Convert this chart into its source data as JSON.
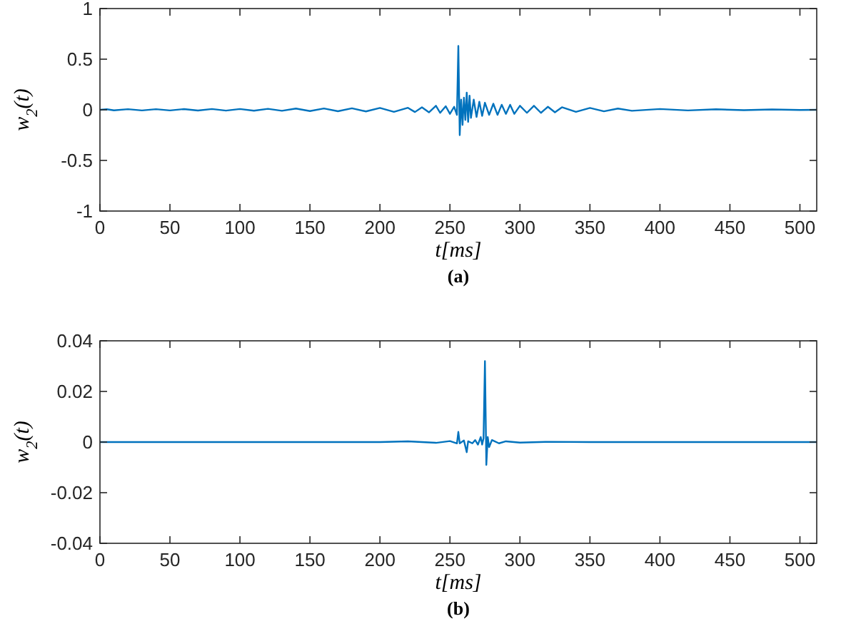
{
  "chart_data": [
    {
      "type": "line",
      "xlabel": "t[ms]",
      "ylabel": "w$_{2}$(t)",
      "annotations": [
        "(a)"
      ],
      "xlim": [
        0,
        512
      ],
      "xticks": [
        0,
        50,
        100,
        150,
        200,
        250,
        300,
        350,
        400,
        450,
        500
      ],
      "ylim": [
        -1,
        1
      ],
      "yticks": [
        -1,
        -0.5,
        0,
        0.5,
        1
      ],
      "grid": false,
      "series": [
        {
          "color": "#0072bd",
          "x": [
            0,
            5,
            10,
            20,
            30,
            40,
            50,
            60,
            70,
            80,
            90,
            100,
            110,
            120,
            130,
            140,
            150,
            160,
            170,
            180,
            190,
            200,
            210,
            220,
            225,
            230,
            235,
            240,
            243,
            247,
            250,
            253,
            255,
            256,
            257,
            258,
            259,
            260,
            261,
            262,
            263,
            264,
            265,
            267,
            269,
            271,
            273,
            275,
            278,
            281,
            284,
            287,
            290,
            293,
            296,
            300,
            305,
            310,
            315,
            320,
            325,
            330,
            340,
            350,
            360,
            370,
            380,
            400,
            420,
            440,
            460,
            480,
            500,
            512
          ],
          "values": [
            0,
            0.005,
            -0.005,
            0.006,
            -0.006,
            0.006,
            -0.006,
            0.007,
            -0.007,
            0.008,
            -0.008,
            0.008,
            -0.009,
            0.01,
            -0.01,
            0.012,
            -0.012,
            0.013,
            -0.014,
            0.015,
            -0.016,
            0.018,
            -0.02,
            0.02,
            -0.022,
            0.025,
            -0.025,
            0.04,
            -0.03,
            0.035,
            -0.04,
            0.03,
            -0.05,
            0.63,
            -0.25,
            0.1,
            -0.15,
            0.12,
            -0.1,
            0.17,
            -0.12,
            0.14,
            -0.08,
            0.1,
            -0.07,
            0.08,
            -0.06,
            0.07,
            -0.05,
            0.06,
            -0.05,
            0.05,
            -0.04,
            0.05,
            -0.04,
            0.04,
            -0.03,
            0.04,
            -0.03,
            0.03,
            -0.025,
            0.025,
            -0.02,
            0.018,
            -0.015,
            0.012,
            -0.01,
            0.008,
            -0.006,
            0.005,
            -0.004,
            0.003,
            -0.002,
            0
          ]
        }
      ]
    },
    {
      "type": "line",
      "xlabel": "t[ms]",
      "ylabel": "w$_{2}$(t)",
      "annotations": [
        "(b)"
      ],
      "xlim": [
        0,
        512
      ],
      "xticks": [
        0,
        50,
        100,
        150,
        200,
        250,
        300,
        350,
        400,
        450,
        500
      ],
      "ylim": [
        -0.04,
        0.04
      ],
      "yticks": [
        -0.04,
        -0.02,
        0,
        0.02,
        0.04
      ],
      "grid": false,
      "series": [
        {
          "color": "#0072bd",
          "x": [
            0,
            200,
            220,
            240,
            250,
            255,
            256,
            257,
            260,
            262,
            263,
            266,
            268,
            270,
            272,
            273,
            274,
            275,
            276,
            277,
            278,
            280,
            285,
            290,
            300,
            320,
            350,
            512
          ],
          "values": [
            0,
            0,
            0.0003,
            -0.0003,
            0.0004,
            -0.0005,
            0.004,
            -0.0005,
            0.0006,
            -0.004,
            0.0003,
            -0.0005,
            0.0008,
            -0.001,
            0.002,
            -0.001,
            0.0015,
            0.032,
            -0.009,
            0.002,
            -0.002,
            0.0008,
            -0.0005,
            0.0003,
            -0.0002,
            0.0001,
            0,
            0
          ]
        }
      ]
    }
  ]
}
